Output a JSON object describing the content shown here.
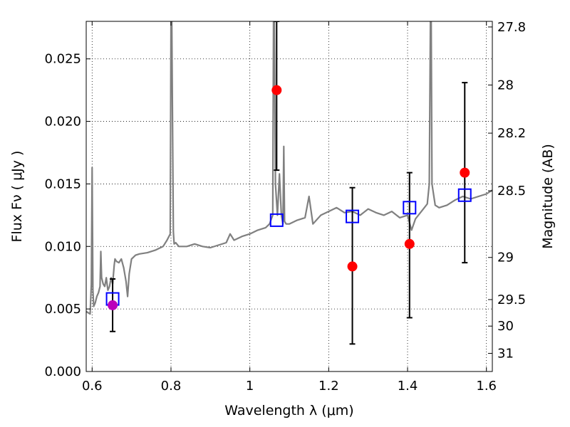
{
  "chart_data": {
    "type": "line",
    "xlabel": "Wavelength  λ (μm)",
    "ylabel": "Flux  Fν  ( μJy )",
    "ylabel_right": "Magnitude (AB)",
    "xlim": [
      0.585,
      1.615
    ],
    "ylim": [
      0.0,
      0.028
    ],
    "grid": true,
    "x_ticks": [
      0.6,
      0.8,
      1.0,
      1.2,
      1.4,
      1.6
    ],
    "x_tick_labels": [
      "0.6",
      "0.8",
      "1",
      "1.2",
      "1.4",
      "1.6"
    ],
    "y_ticks": [
      0.0,
      0.005,
      0.01,
      0.015,
      0.02,
      0.025
    ],
    "y_tick_labels": [
      "0.000",
      "0.005",
      "0.010",
      "0.015",
      "0.020",
      "0.025"
    ],
    "right_axis_ticks": [
      {
        "label": "27.8",
        "flux": 0.02755
      },
      {
        "label": "28",
        "flux": 0.02291
      },
      {
        "label": "28.2",
        "flux": 0.01906
      },
      {
        "label": "28.5",
        "flux": 0.01445
      },
      {
        "label": "29",
        "flux": 0.00912
      },
      {
        "label": "29.5",
        "flux": 0.00575
      },
      {
        "label": "30",
        "flux": 0.00363
      },
      {
        "label": "31",
        "flux": 0.00145
      }
    ],
    "series": [
      {
        "kind": "model-spectrum",
        "color": "#808080",
        "x": [
          0.585,
          0.595,
          0.598,
          0.6,
          0.602,
          0.604,
          0.608,
          0.612,
          0.616,
          0.62,
          0.622,
          0.624,
          0.628,
          0.632,
          0.636,
          0.64,
          0.644,
          0.648,
          0.652,
          0.656,
          0.658,
          0.662,
          0.668,
          0.674,
          0.68,
          0.686,
          0.69,
          0.694,
          0.7,
          0.71,
          0.72,
          0.74,
          0.76,
          0.78,
          0.79,
          0.798,
          0.8,
          0.802,
          0.806,
          0.808,
          0.812,
          0.82,
          0.84,
          0.86,
          0.88,
          0.9,
          0.92,
          0.94,
          0.95,
          0.96,
          0.98,
          1.0,
          1.02,
          1.04,
          1.05,
          1.058,
          1.06,
          1.062,
          1.065,
          1.07,
          1.075,
          1.08,
          1.084,
          1.086,
          1.088,
          1.092,
          1.1,
          1.12,
          1.14,
          1.15,
          1.16,
          1.18,
          1.2,
          1.22,
          1.24,
          1.26,
          1.28,
          1.3,
          1.32,
          1.34,
          1.36,
          1.38,
          1.4,
          1.41,
          1.42,
          1.44,
          1.45,
          1.455,
          1.458,
          1.46,
          1.462,
          1.47,
          1.48,
          1.5,
          1.52,
          1.54,
          1.56,
          1.58,
          1.6,
          1.615
        ],
        "y": [
          0.0048,
          0.0046,
          0.007,
          0.0163,
          0.0065,
          0.0052,
          0.0055,
          0.006,
          0.0063,
          0.0068,
          0.0096,
          0.0075,
          0.007,
          0.0068,
          0.0075,
          0.0065,
          0.0068,
          0.0075,
          0.007,
          0.0085,
          0.009,
          0.0088,
          0.0087,
          0.009,
          0.0083,
          0.0072,
          0.006,
          0.0078,
          0.009,
          0.0093,
          0.0094,
          0.0095,
          0.0097,
          0.01,
          0.0105,
          0.011,
          0.028,
          0.028,
          0.0112,
          0.0102,
          0.0103,
          0.01,
          0.01,
          0.0102,
          0.01,
          0.0099,
          0.0101,
          0.0103,
          0.011,
          0.0105,
          0.0108,
          0.011,
          0.0113,
          0.0115,
          0.0118,
          0.0125,
          0.028,
          0.028,
          0.015,
          0.0125,
          0.0158,
          0.0125,
          0.0118,
          0.018,
          0.012,
          0.0118,
          0.0118,
          0.0121,
          0.0123,
          0.014,
          0.0118,
          0.0125,
          0.0128,
          0.0131,
          0.0127,
          0.0128,
          0.0125,
          0.013,
          0.0127,
          0.0125,
          0.0128,
          0.0123,
          0.0125,
          0.0113,
          0.0122,
          0.013,
          0.0134,
          0.015,
          0.028,
          0.028,
          0.015,
          0.0133,
          0.0131,
          0.0133,
          0.0137,
          0.014,
          0.0138,
          0.014,
          0.0142,
          0.0145
        ]
      },
      {
        "kind": "model-points",
        "marker": "square",
        "color": "#0000ff",
        "x": [
          0.652,
          1.068,
          1.26,
          1.405,
          1.545
        ],
        "y": [
          0.0058,
          0.0121,
          0.0124,
          0.0131,
          0.0141
        ]
      },
      {
        "kind": "observed",
        "marker": "circle",
        "color": "#ff0000",
        "x": [
          1.068,
          1.26,
          1.405,
          1.545
        ],
        "y": [
          0.0225,
          0.0084,
          0.0102,
          0.0159
        ],
        "yerr_low": [
          0.0161,
          0.0022,
          0.0043,
          0.0087
        ],
        "yerr_high": [
          0.028,
          0.0147,
          0.0159,
          0.0231
        ]
      },
      {
        "kind": "observed",
        "marker": "circle",
        "color": "#bb00bb",
        "x": [
          0.652
        ],
        "y": [
          0.0053
        ],
        "yerr_low": [
          0.0032
        ],
        "yerr_high": [
          0.0074
        ]
      }
    ]
  }
}
